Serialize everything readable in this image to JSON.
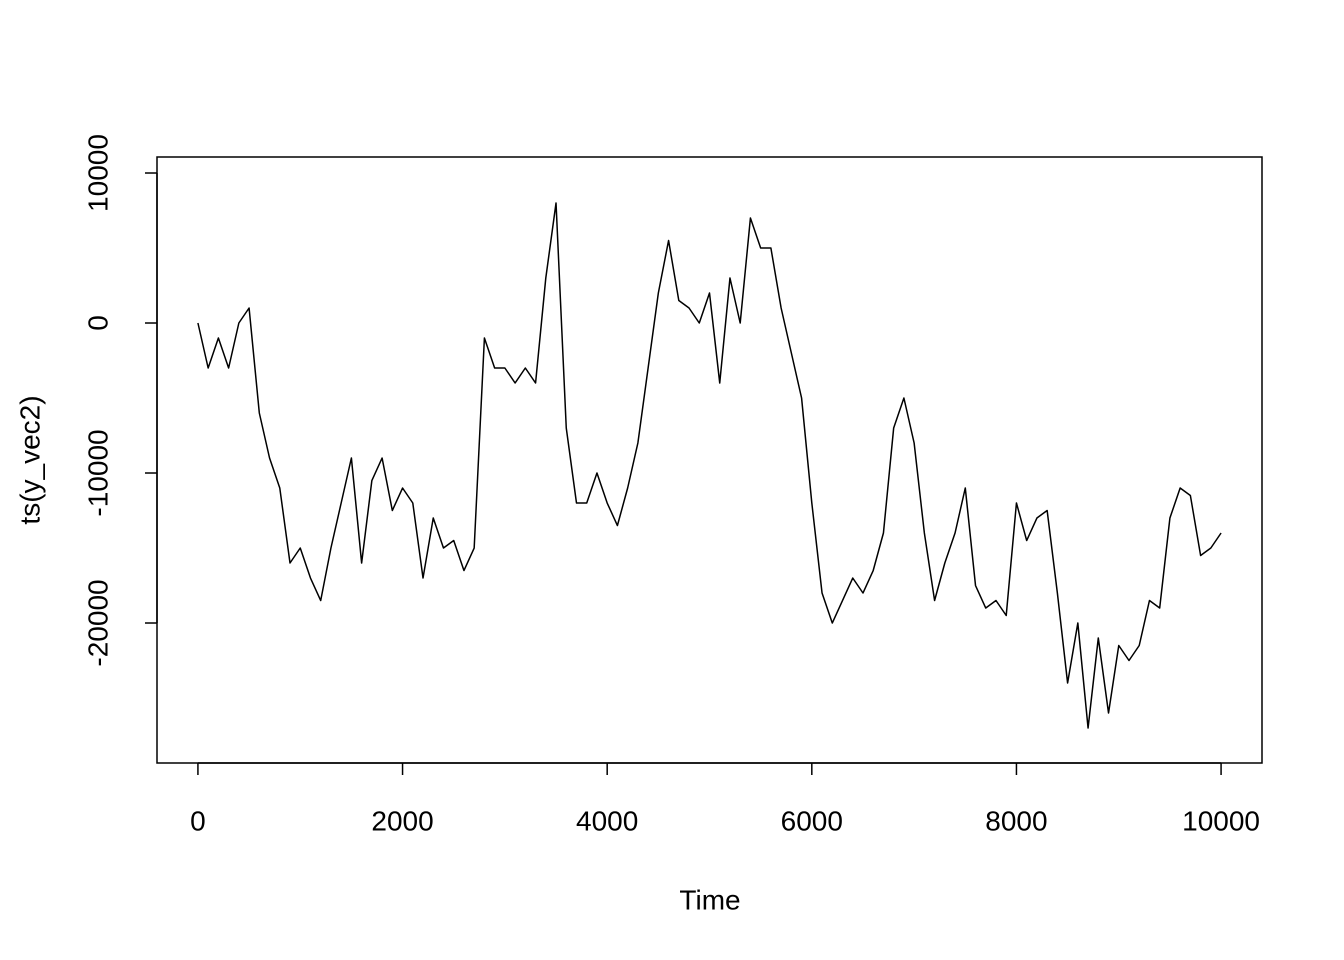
{
  "chart_data": {
    "type": "line",
    "x_label": "Time",
    "y_label": "ts(y_vec2)",
    "x": [
      0,
      100,
      200,
      300,
      400,
      500,
      600,
      700,
      800,
      900,
      1000,
      1100,
      1200,
      1300,
      1400,
      1500,
      1600,
      1700,
      1800,
      1900,
      2000,
      2100,
      2200,
      2300,
      2400,
      2500,
      2600,
      2700,
      2800,
      2900,
      3000,
      3100,
      3200,
      3300,
      3400,
      3500,
      3600,
      3700,
      3800,
      3900,
      4000,
      4100,
      4200,
      4300,
      4400,
      4500,
      4600,
      4700,
      4800,
      4900,
      5000,
      5100,
      5200,
      5300,
      5400,
      5500,
      5600,
      5700,
      5800,
      5900,
      6000,
      6100,
      6200,
      6300,
      6400,
      6500,
      6600,
      6700,
      6800,
      6900,
      7000,
      7100,
      7200,
      7300,
      7400,
      7500,
      7600,
      7700,
      7800,
      7900,
      8000,
      8100,
      8200,
      8300,
      8400,
      8500,
      8600,
      8700,
      8800,
      8900,
      9000,
      9100,
      9200,
      9300,
      9400,
      9500,
      9600,
      9700,
      9800,
      9900,
      10000
    ],
    "series": [
      {
        "name": "ts(y_vec2)",
        "color": "#000000",
        "values": [
          0,
          -3000,
          -1000,
          -3000,
          0,
          1000,
          -6000,
          -9000,
          -11000,
          -16000,
          -15000,
          -17000,
          -18500,
          -15000,
          -12000,
          -9000,
          -16000,
          -10500,
          -9000,
          -12500,
          -11000,
          -12000,
          -17000,
          -13000,
          -15000,
          -14500,
          -16500,
          -15000,
          -1000,
          -3000,
          -3000,
          -4000,
          -3000,
          -4000,
          3000,
          8000,
          -7000,
          -12000,
          -12000,
          -10000,
          -12000,
          -13500,
          -11000,
          -8000,
          -3000,
          2000,
          5500,
          1500,
          1000,
          0,
          2000,
          -4000,
          3000,
          0,
          7000,
          5000,
          5000,
          1000,
          -2000,
          -5000,
          -12000,
          -18000,
          -20000,
          -18500,
          -17000,
          -18000,
          -16500,
          -14000,
          -7000,
          -5000,
          -8000,
          -14000,
          -18500,
          -16000,
          -14000,
          -11000,
          -17500,
          -19000,
          -18500,
          -19500,
          -12000,
          -14500,
          -13000,
          -12500,
          -18000,
          -24000,
          -20000,
          -27000,
          -21000,
          -26000,
          -21500,
          -22500,
          -21500,
          -18500,
          -19000,
          -13000,
          -11000,
          -11500,
          -15500,
          -15000,
          -14000
        ]
      }
    ],
    "xlim": [
      -400,
      10400
    ],
    "ylim": [
      -29333,
      11067
    ],
    "xticks": [
      0,
      2000,
      4000,
      6000,
      8000,
      10000
    ],
    "yticks": [
      -20000,
      -10000,
      0,
      10000
    ]
  }
}
